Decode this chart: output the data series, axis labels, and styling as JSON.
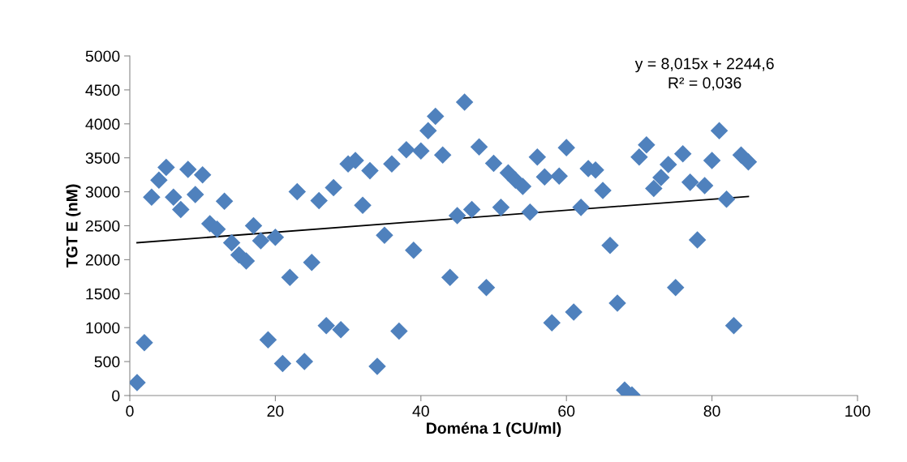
{
  "chart_data": {
    "type": "scatter",
    "xlabel": "Doména 1 (CU/ml)",
    "ylabel": "TGT E (nM)",
    "annotations": [
      "y = 8,015x + 2244,6\nR² = 0,036"
    ],
    "xlim": [
      0,
      100
    ],
    "xticks": [
      0,
      20,
      40,
      60,
      80,
      100
    ],
    "ylim": [
      0,
      5000
    ],
    "yticks": [
      0,
      500,
      1000,
      1500,
      2000,
      2500,
      3000,
      3500,
      4000,
      4500,
      5000
    ],
    "grid": false,
    "legend": false,
    "marker": "diamond",
    "series": [
      {
        "color": "#4f81bd",
        "x": [
          1,
          2,
          3,
          4,
          5,
          6,
          7,
          8,
          9,
          10,
          11,
          12,
          13,
          14,
          15,
          16,
          17,
          18,
          19,
          20,
          21,
          22,
          23,
          24,
          25,
          26,
          27,
          28,
          29,
          30,
          31,
          32,
          33,
          34,
          35,
          36,
          37,
          38,
          39,
          40,
          41,
          42,
          43,
          44,
          45,
          46,
          47,
          48,
          49,
          50,
          51,
          52,
          53,
          54,
          55,
          56,
          57,
          58,
          59,
          60,
          61,
          62,
          63,
          64,
          65,
          66,
          67,
          68,
          69,
          70,
          71,
          72,
          73,
          74,
          75,
          76,
          77,
          78,
          79,
          80,
          81,
          82,
          83,
          84,
          85
        ],
        "values": [
          190,
          780,
          2920,
          3170,
          3360,
          2920,
          2740,
          3330,
          2960,
          3250,
          2530,
          2450,
          2860,
          2250,
          2070,
          1980,
          2500,
          2280,
          820,
          2330,
          470,
          1740,
          3000,
          500,
          1960,
          2870,
          1030,
          3060,
          970,
          3410,
          3460,
          2800,
          3310,
          430,
          2360,
          3410,
          950,
          3620,
          2140,
          3600,
          3900,
          4110,
          3540,
          1740,
          2650,
          4320,
          2740,
          3660,
          1590,
          3420,
          2770,
          3280,
          3170,
          3080,
          2700,
          3510,
          3220,
          1070,
          3230,
          3650,
          1230,
          2770,
          3340,
          3320,
          3020,
          2210,
          1360,
          80,
          10,
          3510,
          3690,
          3050,
          3210,
          3400,
          1590,
          3560,
          3140,
          2290,
          3090,
          3460,
          3900,
          2890,
          1030,
          3540,
          3440
        ]
      },
      {
        "type": "line",
        "color": "#000000",
        "marker": "none",
        "line_style": "solid",
        "x": [
          1,
          85
        ],
        "values": [
          2250,
          2930
        ]
      }
    ]
  }
}
